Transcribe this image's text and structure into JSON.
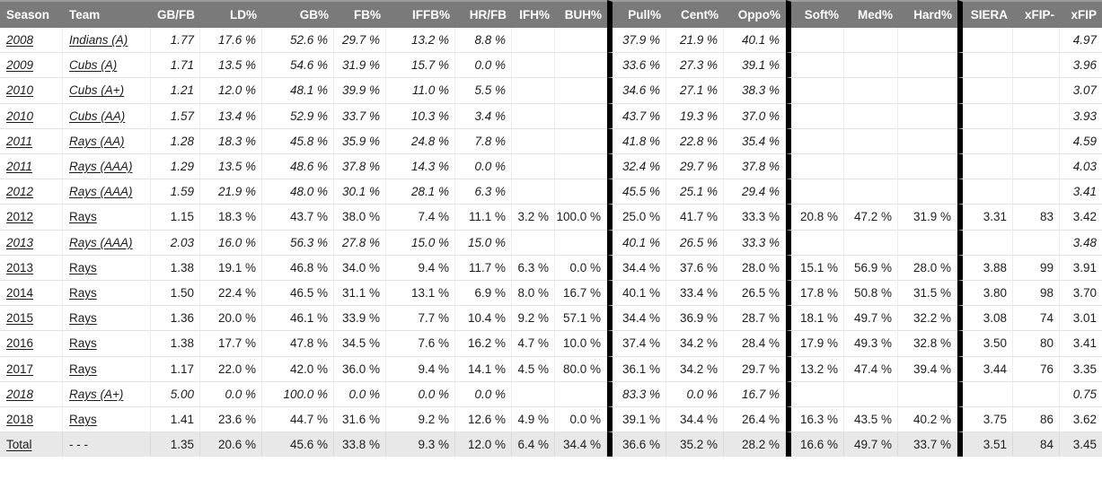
{
  "colors": {
    "header_bg": "#7a7a7a",
    "header_text": "#ffffff",
    "total_row_bg": "#e8e8e8",
    "group_divider": "#000000",
    "body_text": "#1c1c1c"
  },
  "table": {
    "columns": [
      {
        "key": "season",
        "label": "Season",
        "align": "left",
        "group_start": false
      },
      {
        "key": "team",
        "label": "Team",
        "align": "left",
        "group_start": false
      },
      {
        "key": "gbfb",
        "label": "GB/FB",
        "align": "right",
        "group_start": false
      },
      {
        "key": "ld",
        "label": "LD%",
        "align": "right",
        "group_start": false
      },
      {
        "key": "gb",
        "label": "GB%",
        "align": "right",
        "group_start": false
      },
      {
        "key": "fb",
        "label": "FB%",
        "align": "right",
        "group_start": false
      },
      {
        "key": "iffb",
        "label": "IFFB%",
        "align": "right",
        "group_start": false
      },
      {
        "key": "hrfb",
        "label": "HR/FB",
        "align": "right",
        "group_start": false
      },
      {
        "key": "ifh",
        "label": "IFH%",
        "align": "right",
        "group_start": false
      },
      {
        "key": "buh",
        "label": "BUH%",
        "align": "right",
        "group_start": false
      },
      {
        "key": "pull",
        "label": "Pull%",
        "align": "right",
        "group_start": true
      },
      {
        "key": "cent",
        "label": "Cent%",
        "align": "right",
        "group_start": false
      },
      {
        "key": "oppo",
        "label": "Oppo%",
        "align": "right",
        "group_start": false
      },
      {
        "key": "soft",
        "label": "Soft%",
        "align": "right",
        "group_start": true
      },
      {
        "key": "med",
        "label": "Med%",
        "align": "right",
        "group_start": false
      },
      {
        "key": "hard",
        "label": "Hard%",
        "align": "right",
        "group_start": false
      },
      {
        "key": "siera",
        "label": "SIERA",
        "align": "right",
        "group_start": true
      },
      {
        "key": "xfipminus",
        "label": "xFIP-",
        "align": "right",
        "group_start": false
      },
      {
        "key": "xfip",
        "label": "xFIP",
        "align": "right",
        "group_start": false
      }
    ],
    "rows": [
      {
        "season": "2008",
        "team": "Indians (A)",
        "minor": true,
        "total": false,
        "cells": [
          "1.77",
          "17.6 %",
          "52.6 %",
          "29.7 %",
          "13.2 %",
          "8.8 %",
          "",
          "",
          "37.9 %",
          "21.9 %",
          "40.1 %",
          "",
          "",
          "",
          "",
          "",
          "4.97"
        ]
      },
      {
        "season": "2009",
        "team": "Cubs (A)",
        "minor": true,
        "total": false,
        "cells": [
          "1.71",
          "13.5 %",
          "54.6 %",
          "31.9 %",
          "15.7 %",
          "0.0 %",
          "",
          "",
          "33.6 %",
          "27.3 %",
          "39.1 %",
          "",
          "",
          "",
          "",
          "",
          "3.96"
        ]
      },
      {
        "season": "2010",
        "team": "Cubs (A+)",
        "minor": true,
        "total": false,
        "cells": [
          "1.21",
          "12.0 %",
          "48.1 %",
          "39.9 %",
          "11.0 %",
          "5.5 %",
          "",
          "",
          "34.6 %",
          "27.1 %",
          "38.3 %",
          "",
          "",
          "",
          "",
          "",
          "3.07"
        ]
      },
      {
        "season": "2010",
        "team": "Cubs (AA)",
        "minor": true,
        "total": false,
        "cells": [
          "1.57",
          "13.4 %",
          "52.9 %",
          "33.7 %",
          "10.3 %",
          "3.4 %",
          "",
          "",
          "43.7 %",
          "19.3 %",
          "37.0 %",
          "",
          "",
          "",
          "",
          "",
          "3.93"
        ]
      },
      {
        "season": "2011",
        "team": "Rays (AA)",
        "minor": true,
        "total": false,
        "cells": [
          "1.28",
          "18.3 %",
          "45.8 %",
          "35.9 %",
          "24.8 %",
          "7.8 %",
          "",
          "",
          "41.8 %",
          "22.8 %",
          "35.4 %",
          "",
          "",
          "",
          "",
          "",
          "4.59"
        ]
      },
      {
        "season": "2011",
        "team": "Rays (AAA)",
        "minor": true,
        "total": false,
        "cells": [
          "1.29",
          "13.5 %",
          "48.6 %",
          "37.8 %",
          "14.3 %",
          "0.0 %",
          "",
          "",
          "32.4 %",
          "29.7 %",
          "37.8 %",
          "",
          "",
          "",
          "",
          "",
          "4.03"
        ]
      },
      {
        "season": "2012",
        "team": "Rays (AAA)",
        "minor": true,
        "total": false,
        "cells": [
          "1.59",
          "21.9 %",
          "48.0 %",
          "30.1 %",
          "28.1 %",
          "6.3 %",
          "",
          "",
          "45.5 %",
          "25.1 %",
          "29.4 %",
          "",
          "",
          "",
          "",
          "",
          "3.41"
        ]
      },
      {
        "season": "2012",
        "team": "Rays",
        "minor": false,
        "total": false,
        "cells": [
          "1.15",
          "18.3 %",
          "43.7 %",
          "38.0 %",
          "7.4 %",
          "11.1 %",
          "3.2 %",
          "100.0 %",
          "25.0 %",
          "41.7 %",
          "33.3 %",
          "20.8 %",
          "47.2 %",
          "31.9 %",
          "3.31",
          "83",
          "3.42"
        ]
      },
      {
        "season": "2013",
        "team": "Rays (AAA)",
        "minor": true,
        "total": false,
        "cells": [
          "2.03",
          "16.0 %",
          "56.3 %",
          "27.8 %",
          "15.0 %",
          "15.0 %",
          "",
          "",
          "40.1 %",
          "26.5 %",
          "33.3 %",
          "",
          "",
          "",
          "",
          "",
          "3.48"
        ]
      },
      {
        "season": "2013",
        "team": "Rays",
        "minor": false,
        "total": false,
        "cells": [
          "1.38",
          "19.1 %",
          "46.8 %",
          "34.0 %",
          "9.4 %",
          "11.7 %",
          "6.3 %",
          "0.0 %",
          "34.4 %",
          "37.6 %",
          "28.0 %",
          "15.1 %",
          "56.9 %",
          "28.0 %",
          "3.88",
          "99",
          "3.91"
        ]
      },
      {
        "season": "2014",
        "team": "Rays",
        "minor": false,
        "total": false,
        "cells": [
          "1.50",
          "22.4 %",
          "46.5 %",
          "31.1 %",
          "13.1 %",
          "6.9 %",
          "8.0 %",
          "16.7 %",
          "40.1 %",
          "33.4 %",
          "26.5 %",
          "17.8 %",
          "50.8 %",
          "31.5 %",
          "3.80",
          "98",
          "3.70"
        ]
      },
      {
        "season": "2015",
        "team": "Rays",
        "minor": false,
        "total": false,
        "cells": [
          "1.36",
          "20.0 %",
          "46.1 %",
          "33.9 %",
          "7.7 %",
          "10.4 %",
          "9.2 %",
          "57.1 %",
          "34.4 %",
          "36.9 %",
          "28.7 %",
          "18.1 %",
          "49.7 %",
          "32.2 %",
          "3.08",
          "74",
          "3.01"
        ]
      },
      {
        "season": "2016",
        "team": "Rays",
        "minor": false,
        "total": false,
        "cells": [
          "1.38",
          "17.7 %",
          "47.8 %",
          "34.5 %",
          "7.6 %",
          "16.2 %",
          "4.7 %",
          "10.0 %",
          "37.4 %",
          "34.2 %",
          "28.4 %",
          "17.9 %",
          "49.3 %",
          "32.8 %",
          "3.50",
          "80",
          "3.41"
        ]
      },
      {
        "season": "2017",
        "team": "Rays",
        "minor": false,
        "total": false,
        "cells": [
          "1.17",
          "22.0 %",
          "42.0 %",
          "36.0 %",
          "9.4 %",
          "14.1 %",
          "4.5 %",
          "80.0 %",
          "36.1 %",
          "34.2 %",
          "29.7 %",
          "13.2 %",
          "47.4 %",
          "39.4 %",
          "3.44",
          "76",
          "3.35"
        ]
      },
      {
        "season": "2018",
        "team": "Rays (A+)",
        "minor": true,
        "total": false,
        "cells": [
          "5.00",
          "0.0 %",
          "100.0 %",
          "0.0 %",
          "0.0 %",
          "0.0 %",
          "",
          "",
          "83.3 %",
          "0.0 %",
          "16.7 %",
          "",
          "",
          "",
          "",
          "",
          "0.75"
        ]
      },
      {
        "season": "2018",
        "team": "Rays",
        "minor": false,
        "total": false,
        "cells": [
          "1.41",
          "23.6 %",
          "44.7 %",
          "31.6 %",
          "9.2 %",
          "12.6 %",
          "4.9 %",
          "0.0 %",
          "39.1 %",
          "34.4 %",
          "26.4 %",
          "16.3 %",
          "43.5 %",
          "40.2 %",
          "3.75",
          "86",
          "3.62"
        ]
      },
      {
        "season": "Total",
        "team": "- - -",
        "minor": false,
        "total": true,
        "cells": [
          "1.35",
          "20.6 %",
          "45.6 %",
          "33.8 %",
          "9.3 %",
          "12.0 %",
          "6.4 %",
          "34.4 %",
          "36.6 %",
          "35.2 %",
          "28.2 %",
          "16.6 %",
          "49.7 %",
          "33.7 %",
          "3.51",
          "84",
          "3.45"
        ]
      }
    ]
  }
}
